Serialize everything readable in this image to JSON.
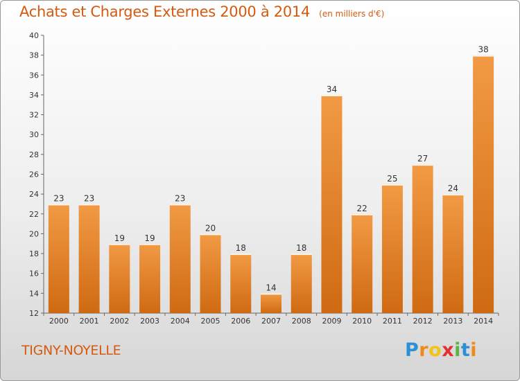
{
  "chart_data": {
    "type": "bar",
    "title": "Achats et Charges Externes 2000 à 2014",
    "subtitle": "(en milliers d'€)",
    "categories": [
      "2000",
      "2001",
      "2002",
      "2003",
      "2004",
      "2005",
      "2006",
      "2007",
      "2008",
      "2009",
      "2010",
      "2011",
      "2012",
      "2013",
      "2014"
    ],
    "values": [
      23,
      23,
      19,
      19,
      23,
      20,
      18,
      14,
      18,
      34,
      22,
      25,
      27,
      24,
      38
    ],
    "ylim": [
      12,
      40
    ],
    "yticks": [
      12,
      14,
      16,
      18,
      20,
      22,
      24,
      26,
      28,
      30,
      32,
      34,
      36,
      38,
      40
    ],
    "grid": false,
    "bar_color": "#f29a45",
    "bar_color_dark": "#cf6a12"
  },
  "commune": "TIGNY-NOYELLE",
  "logo": {
    "parts": [
      "P",
      "r",
      "o",
      "x",
      "i",
      "t",
      "i"
    ]
  }
}
